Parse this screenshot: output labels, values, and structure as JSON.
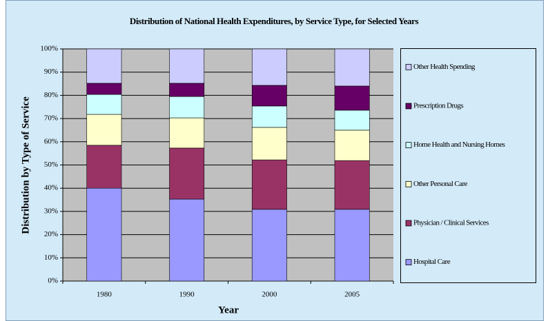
{
  "chart_data": {
    "type": "stacked_bar",
    "title": "Distribution of National Health Expenditures, by Service Type, for Selected Years",
    "y_label": "Distribution by Type of Service",
    "x_label": "Year",
    "categories": [
      "1980",
      "1990",
      "2000",
      "2005"
    ],
    "series": [
      {
        "name": "Hospital Care",
        "color": "#9999ff",
        "values": [
          40.0,
          35.3,
          30.9,
          30.9
        ]
      },
      {
        "name": "Physician / Clinical Services",
        "color": "#993366",
        "values": [
          18.5,
          22.0,
          21.3,
          21.0
        ]
      },
      {
        "name": "Other Personal Care",
        "color": "#ffffcc",
        "values": [
          13.3,
          13.0,
          14.0,
          13.1
        ]
      },
      {
        "name": "Home Health and Nursing Homes",
        "color": "#ccffff",
        "values": [
          8.6,
          9.2,
          9.2,
          8.6
        ]
      },
      {
        "name": "Prescription Drugs",
        "color": "#660066",
        "values": [
          4.8,
          5.7,
          8.9,
          10.4
        ]
      },
      {
        "name": "Other Health Spending",
        "color": "#ccccff",
        "values": [
          14.8,
          14.8,
          15.7,
          16.0
        ]
      }
    ],
    "ylim": [
      0,
      100
    ],
    "yticks": [
      {
        "value": 0,
        "label": "0%"
      },
      {
        "value": 10,
        "label": "10%"
      },
      {
        "value": 20,
        "label": "20%"
      },
      {
        "value": 30,
        "label": "30%"
      },
      {
        "value": 40,
        "label": "40%"
      },
      {
        "value": 50,
        "label": "50%"
      },
      {
        "value": 60,
        "label": "60%"
      },
      {
        "value": 70,
        "label": "70%"
      },
      {
        "value": 80,
        "label": "80%"
      },
      {
        "value": 90,
        "label": "90%"
      },
      {
        "value": 100,
        "label": "100%"
      }
    ],
    "grid": true,
    "legend": "right"
  }
}
